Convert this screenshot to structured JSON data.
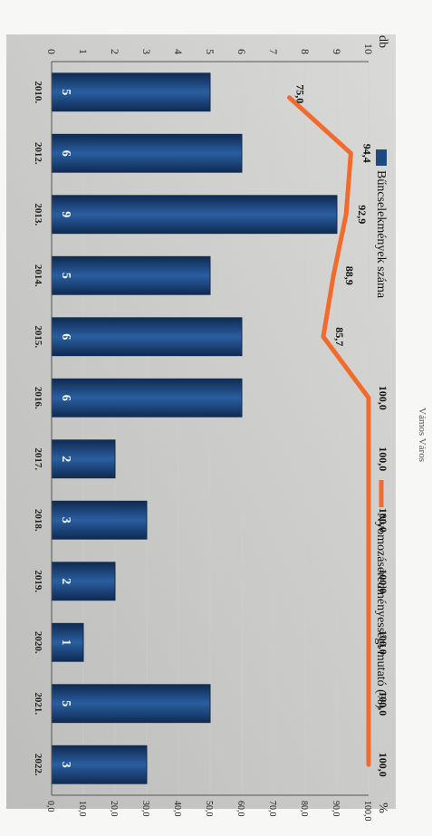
{
  "chart_data": {
    "type": "bar+line",
    "categories": [
      "2010.",
      "2012.",
      "2013.",
      "2014.",
      "2015.",
      "2016.",
      "2017.",
      "2018.",
      "2019.",
      "2020.",
      "2021.",
      "2022."
    ],
    "series": [
      {
        "name": "Bűncselekmények száma",
        "kind": "bar",
        "axis": "left",
        "values": [
          5,
          6,
          9,
          5,
          6,
          6,
          2,
          3,
          2,
          1,
          5,
          3
        ],
        "labels": [
          "5",
          "6",
          "9",
          "5",
          "6",
          "6",
          "2",
          "3",
          "2",
          "1",
          "5",
          "3"
        ]
      },
      {
        "name": "Nyomozáseredményességi mutató (%)",
        "kind": "line",
        "axis": "right",
        "values": [
          75.0,
          94.4,
          92.9,
          88.9,
          85.7,
          100.0,
          100.0,
          100.0,
          100.0,
          100.0,
          100.0,
          100.0
        ],
        "labels": [
          "75,0",
          "94,4",
          "92,9",
          "88,9",
          "85,7",
          "100,0",
          "100,0",
          "100,0",
          "100,0",
          "100,0",
          "100,0",
          "100,0"
        ]
      }
    ],
    "y_left": {
      "unit": "db",
      "min": 0,
      "max": 10,
      "ticks": [
        "0",
        "1",
        "2",
        "3",
        "4",
        "5",
        "6",
        "7",
        "8",
        "9",
        "10"
      ]
    },
    "y_right": {
      "unit": "%",
      "min": 0,
      "max": 100,
      "ticks": [
        "0,0",
        "10,0",
        "20,0",
        "30,0",
        "40,0",
        "50,0",
        "60,0",
        "70,0",
        "80,0",
        "90,0",
        "100,0"
      ]
    },
    "legend": [
      "Bűncselekmények száma",
      "Nyomozáseredményességi mutató (%)"
    ],
    "legend_position": "top",
    "colors": {
      "bar": "#1e4a82",
      "bar_dark": "#0f2b52",
      "line": "#f26b2e",
      "grid": "#cfcfcf"
    }
  },
  "header_fragment": "Vámos Város"
}
